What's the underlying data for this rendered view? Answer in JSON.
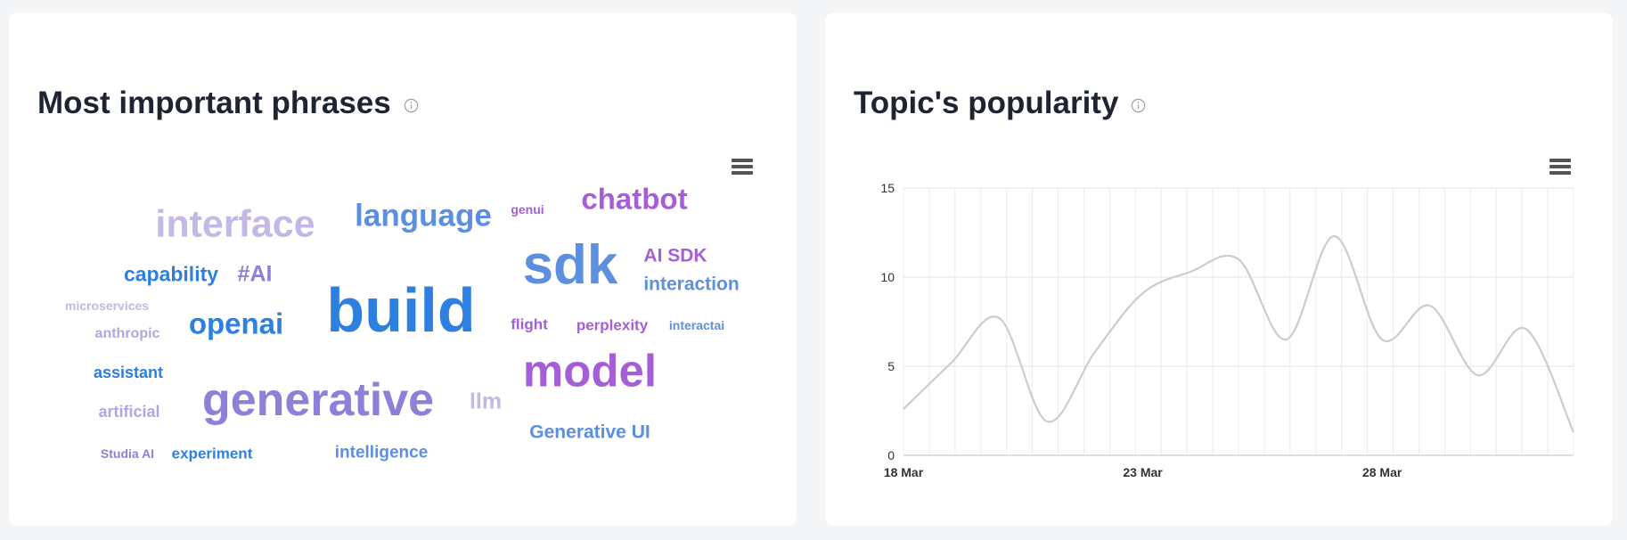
{
  "phrases_panel": {
    "title": "Most important phrases",
    "info_icon": "info-icon",
    "menu_icon": "hamburger-menu-icon",
    "words": [
      {
        "text": "interface",
        "color": "#c4b8e6"
      },
      {
        "text": "language",
        "color": "#5c8fe0"
      },
      {
        "text": "genui",
        "color": "#a55fd6"
      },
      {
        "text": "chatbot",
        "color": "#a55fd6"
      },
      {
        "text": "sdk",
        "color": "#5c8fe0"
      },
      {
        "text": "AI SDK",
        "color": "#a55fd6"
      },
      {
        "text": "interaction",
        "color": "#5c8fe0"
      },
      {
        "text": "capability",
        "color": "#2d7fe0"
      },
      {
        "text": "#AI",
        "color": "#8f7fd8"
      },
      {
        "text": "microservices",
        "color": "#c4b8e6"
      },
      {
        "text": "build",
        "color": "#2d7fe0"
      },
      {
        "text": "openai",
        "color": "#2d7fe0"
      },
      {
        "text": "anthropic",
        "color": "#b3a6e0"
      },
      {
        "text": "flight",
        "color": "#a55fd6"
      },
      {
        "text": "perplexity",
        "color": "#a55fd6"
      },
      {
        "text": "interactai",
        "color": "#5c8fe0"
      },
      {
        "text": "assistant",
        "color": "#2d7fe0"
      },
      {
        "text": "model",
        "color": "#a55fd6"
      },
      {
        "text": "generative",
        "color": "#8f7fd8"
      },
      {
        "text": "llm",
        "color": "#c4b8e6"
      },
      {
        "text": "artificial",
        "color": "#b3a6e0"
      },
      {
        "text": "Generative UI",
        "color": "#5c8fe0"
      },
      {
        "text": "Studia AI",
        "color": "#8f7fd8"
      },
      {
        "text": "experiment",
        "color": "#2d7fe0"
      },
      {
        "text": "intelligence",
        "color": "#5c8fe0"
      }
    ]
  },
  "popularity_panel": {
    "title": "Topic's popularity",
    "info_icon": "info-icon",
    "menu_icon": "hamburger-menu-icon"
  },
  "chart_data": {
    "type": "line",
    "title": "Topic's popularity",
    "xlabel": "",
    "ylabel": "",
    "x_tick_labels": [
      "18 Mar",
      "23 Mar",
      "28 Mar"
    ],
    "y_ticks": [
      0,
      5,
      10,
      15
    ],
    "ylim": [
      0,
      15
    ],
    "grid": true,
    "line_color": "#cccccc",
    "series": [
      {
        "x": [
          "18 Mar",
          "19 Mar",
          "20 Mar",
          "21 Mar",
          "22 Mar",
          "23 Mar",
          "24 Mar",
          "25 Mar",
          "26 Mar",
          "27 Mar",
          "28 Mar",
          "29 Mar",
          "30 Mar",
          "31 Mar",
          "1 Apr"
        ],
        "values": [
          2.6,
          5.2,
          7.7,
          1.9,
          5.8,
          9.1,
          10.3,
          11.0,
          6.5,
          12.3,
          6.5,
          8.4,
          4.5,
          7.1,
          1.3
        ]
      }
    ]
  }
}
